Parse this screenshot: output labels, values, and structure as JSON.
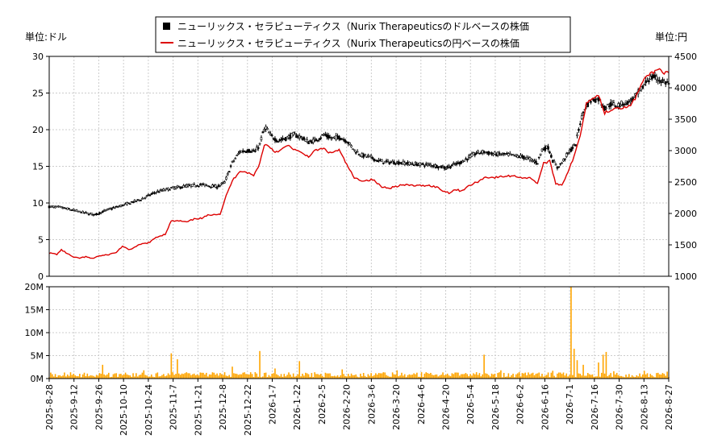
{
  "legend": {
    "dollar_label": "ニューリックス・セラピューティクス（Nurix Therapeuticsのドルベースの株価",
    "yen_label": "ニューリックス・セラピューティクス（Nurix Therapeuticsの円ベースの株価"
  },
  "left_unit": "単位:ドル",
  "right_unit": "単位:円",
  "colors": {
    "candle": "#000000",
    "yen_line": "#dd0000",
    "volume": "#ffa500",
    "grid": "#cccccc",
    "frame": "#000000"
  },
  "chart_data": [
    {
      "type": "candlestick+line",
      "title": "",
      "x_dates": [
        "2025-8-28",
        "2025-9-12",
        "2025-9-26",
        "2025-10-10",
        "2025-10-24",
        "2025-11-7",
        "2025-11-21",
        "2025-12-8",
        "2025-12-22",
        "2026-1-7",
        "2026-1-22",
        "2026-2-5",
        "2026-2-20",
        "2026-3-6",
        "2026-3-20",
        "2026-4-6",
        "2026-4-20",
        "2026-5-4",
        "2026-5-18",
        "2026-6-2",
        "2026-6-16",
        "2026-7-1",
        "2026-7-16",
        "2026-7-30",
        "2026-8-13",
        "2026-8-27"
      ],
      "y_left": {
        "label": "単位:ドル",
        "range": [
          0,
          30
        ],
        "ticks": [
          0,
          5,
          10,
          15,
          20,
          25,
          30
        ]
      },
      "y_right": {
        "label": "単位:円",
        "range": [
          1000,
          4500
        ],
        "ticks": [
          1000,
          1500,
          2000,
          2500,
          3000,
          3500,
          4000,
          4500
        ]
      },
      "grid": true,
      "legend_position": "top-center",
      "series": [
        {
          "name": "ニューリックス・セラピューティクス（Nurix Therapeuticsのドルベースの株価",
          "axis": "left",
          "kind": "candlestick",
          "keypoints": [
            [
              0,
              9.5
            ],
            [
              8,
              9.4
            ],
            [
              20,
              8.8
            ],
            [
              30,
              8.4
            ],
            [
              40,
              9.2
            ],
            [
              50,
              9.8
            ],
            [
              60,
              10.5
            ],
            [
              70,
              11.5
            ],
            [
              80,
              12.0
            ],
            [
              90,
              12.3
            ],
            [
              100,
              12.5
            ],
            [
              110,
              12.2
            ],
            [
              115,
              12.8
            ],
            [
              120,
              15.5
            ],
            [
              125,
              17.0
            ],
            [
              130,
              17.2
            ],
            [
              135,
              17.0
            ],
            [
              138,
              18.0
            ],
            [
              140,
              19.5
            ],
            [
              142,
              20.3
            ],
            [
              145,
              19.2
            ],
            [
              150,
              18.5
            ],
            [
              155,
              18.8
            ],
            [
              160,
              19.3
            ],
            [
              165,
              19.0
            ],
            [
              170,
              18.3
            ],
            [
              175,
              18.6
            ],
            [
              180,
              19.3
            ],
            [
              185,
              18.8
            ],
            [
              190,
              19.0
            ],
            [
              195,
              18.5
            ],
            [
              200,
              17.2
            ],
            [
              205,
              16.5
            ],
            [
              210,
              16.3
            ],
            [
              215,
              15.8
            ],
            [
              220,
              15.6
            ],
            [
              230,
              15.5
            ],
            [
              240,
              15.3
            ],
            [
              250,
              15.2
            ],
            [
              255,
              15.0
            ],
            [
              260,
              14.8
            ],
            [
              265,
              15.2
            ],
            [
              270,
              15.6
            ],
            [
              275,
              16.2
            ],
            [
              280,
              16.8
            ],
            [
              285,
              17.0
            ],
            [
              290,
              16.7
            ],
            [
              300,
              16.6
            ],
            [
              310,
              16.3
            ],
            [
              315,
              16.0
            ],
            [
              320,
              15.5
            ],
            [
              323,
              17.3
            ],
            [
              327,
              17.6
            ],
            [
              330,
              15.8
            ],
            [
              333,
              14.8
            ],
            [
              336,
              15.5
            ],
            [
              340,
              16.8
            ],
            [
              345,
              18.0
            ],
            [
              348,
              21.0
            ],
            [
              351,
              23.0
            ],
            [
              355,
              24.0
            ],
            [
              360,
              24.2
            ],
            [
              364,
              23.0
            ],
            [
              368,
              23.5
            ],
            [
              372,
              23.3
            ],
            [
              376,
              23.6
            ],
            [
              380,
              23.8
            ],
            [
              384,
              24.5
            ],
            [
              388,
              25.5
            ],
            [
              392,
              26.8
            ],
            [
              396,
              27.2
            ],
            [
              400,
              26.8
            ],
            [
              403,
              26.5
            ],
            [
              406,
              26.3
            ]
          ]
        },
        {
          "name": "ニューリックス・セラピューティクス（Nurix Therapeuticsの円ベースの株価",
          "axis": "right",
          "kind": "line",
          "keypoints": [
            [
              0,
              1370
            ],
            [
              5,
              1350
            ],
            [
              8,
              1420
            ],
            [
              12,
              1360
            ],
            [
              16,
              1300
            ],
            [
              20,
              1290
            ],
            [
              24,
              1310
            ],
            [
              28,
              1280
            ],
            [
              32,
              1320
            ],
            [
              38,
              1340
            ],
            [
              44,
              1380
            ],
            [
              48,
              1480
            ],
            [
              52,
              1420
            ],
            [
              56,
              1460
            ],
            [
              60,
              1510
            ],
            [
              66,
              1540
            ],
            [
              70,
              1620
            ],
            [
              76,
              1670
            ],
            [
              80,
              1880
            ],
            [
              86,
              1880
            ],
            [
              90,
              1860
            ],
            [
              96,
              1920
            ],
            [
              100,
              1920
            ],
            [
              104,
              1970
            ],
            [
              108,
              1990
            ],
            [
              112,
              1990
            ],
            [
              116,
              2280
            ],
            [
              120,
              2520
            ],
            [
              125,
              2680
            ],
            [
              130,
              2650
            ],
            [
              134,
              2600
            ],
            [
              138,
              2800
            ],
            [
              141,
              3100
            ],
            [
              144,
              3070
            ],
            [
              148,
              2980
            ],
            [
              152,
              3010
            ],
            [
              156,
              3080
            ],
            [
              160,
              3030
            ],
            [
              166,
              2950
            ],
            [
              170,
              2910
            ],
            [
              175,
              3010
            ],
            [
              180,
              3030
            ],
            [
              184,
              2960
            ],
            [
              190,
              3010
            ],
            [
              194,
              2820
            ],
            [
              200,
              2560
            ],
            [
              206,
              2520
            ],
            [
              212,
              2540
            ],
            [
              218,
              2420
            ],
            [
              224,
              2410
            ],
            [
              230,
              2450
            ],
            [
              236,
              2450
            ],
            [
              242,
              2440
            ],
            [
              248,
              2450
            ],
            [
              254,
              2420
            ],
            [
              258,
              2360
            ],
            [
              262,
              2330
            ],
            [
              266,
              2380
            ],
            [
              270,
              2360
            ],
            [
              276,
              2450
            ],
            [
              282,
              2520
            ],
            [
              286,
              2580
            ],
            [
              292,
              2570
            ],
            [
              298,
              2590
            ],
            [
              304,
              2600
            ],
            [
              310,
              2570
            ],
            [
              316,
              2560
            ],
            [
              320,
              2480
            ],
            [
              324,
              2800
            ],
            [
              328,
              2830
            ],
            [
              332,
              2480
            ],
            [
              336,
              2450
            ],
            [
              340,
              2670
            ],
            [
              344,
              2900
            ],
            [
              348,
              3250
            ],
            [
              352,
              3750
            ],
            [
              356,
              3850
            ],
            [
              360,
              3880
            ],
            [
              364,
              3600
            ],
            [
              368,
              3650
            ],
            [
              372,
              3690
            ],
            [
              376,
              3680
            ],
            [
              380,
              3700
            ],
            [
              384,
              3830
            ],
            [
              388,
              4050
            ],
            [
              392,
              4200
            ],
            [
              396,
              4250
            ],
            [
              400,
              4300
            ],
            [
              403,
              4240
            ],
            [
              406,
              4230
            ]
          ]
        }
      ]
    },
    {
      "type": "bar",
      "title": "",
      "y_range": [
        0,
        20000000
      ],
      "y_ticks": [
        "0M",
        "5M",
        "10M",
        "15M",
        "20M"
      ],
      "series": [
        {
          "name": "",
          "kind": "volume",
          "base": 700000,
          "spikes": [
            [
              35,
              3000000
            ],
            [
              62,
              1800000
            ],
            [
              80,
              5500000
            ],
            [
              84,
              4200000
            ],
            [
              120,
              2600000
            ],
            [
              138,
              6000000
            ],
            [
              148,
              2200000
            ],
            [
              164,
              3800000
            ],
            [
              192,
              2000000
            ],
            [
              228,
              1800000
            ],
            [
              285,
              5200000
            ],
            [
              296,
              1800000
            ],
            [
              330,
              1700000
            ],
            [
              342,
              20500000
            ],
            [
              344,
              6500000
            ],
            [
              346,
              4000000
            ],
            [
              350,
              3000000
            ],
            [
              360,
              3500000
            ],
            [
              363,
              5200000
            ],
            [
              365,
              5800000
            ],
            [
              370,
              1600000
            ],
            [
              390,
              1700000
            ],
            [
              405,
              1500000
            ]
          ]
        }
      ]
    }
  ]
}
